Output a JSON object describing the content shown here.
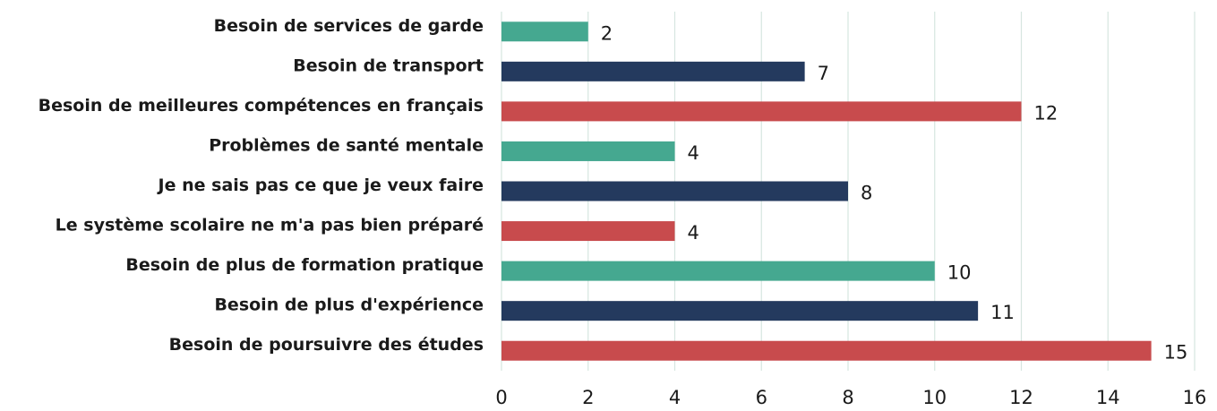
{
  "chart_data": {
    "type": "barh",
    "categories": [
      "Besoin de services de garde",
      "Besoin de transport",
      "Besoin de meilleures compétences en français",
      "Problèmes de santé mentale",
      "Je ne sais pas ce que je veux faire",
      "Le système scolaire ne m'a pas bien préparé",
      "Besoin de plus de formation pratique",
      "Besoin de plus d'expérience",
      "Besoin de poursuivre des études"
    ],
    "values": [
      2,
      7,
      12,
      4,
      8,
      4,
      10,
      11,
      15
    ],
    "colors": [
      "#45a890",
      "#243a5e",
      "#c84b4d",
      "#45a890",
      "#243a5e",
      "#c84b4d",
      "#45a890",
      "#243a5e",
      "#c84b4d"
    ],
    "xlim": [
      0,
      16
    ],
    "xticks": [
      0,
      2,
      4,
      6,
      8,
      10,
      12,
      14,
      16
    ],
    "grid": true
  }
}
